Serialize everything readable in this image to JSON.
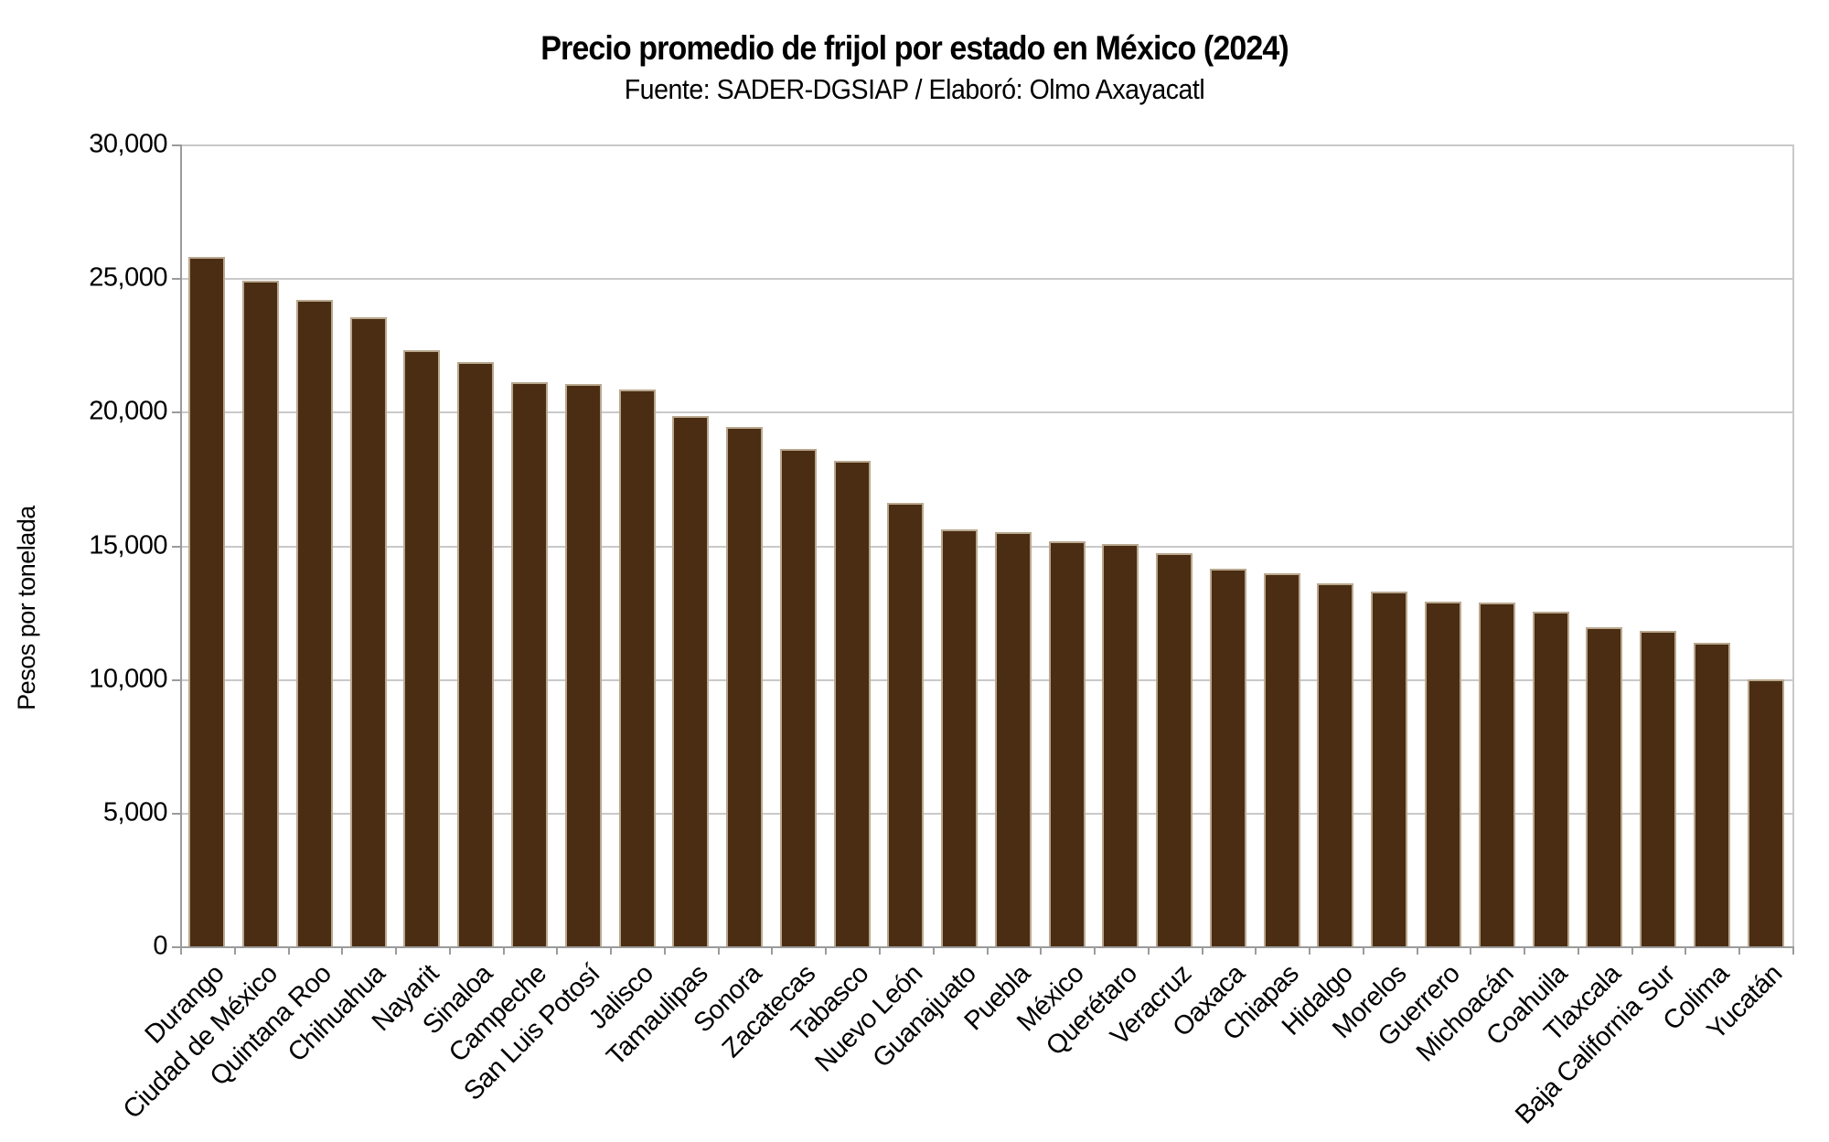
{
  "chart_data": {
    "type": "bar",
    "title": "Precio promedio de frijol por estado en México (2024)",
    "subtitle": "Fuente: SADER-DGSIAP / Elaboró: Olmo Axayacatl",
    "ylabel": "Pesos por tonelada",
    "xlabel": "",
    "ylim": [
      0,
      30000
    ],
    "ytick_step": 5000,
    "ytick_labels": [
      "0",
      "5,000",
      "10,000",
      "15,000",
      "20,000",
      "25,000",
      "30,000"
    ],
    "grid": true,
    "legend": false,
    "bar_color": "#4a2d12",
    "bar_border_color": "#b9a88f",
    "gridline_color": "#c9c9c9",
    "axis_color": "#9b9b9b",
    "categories": [
      "Durango",
      "Ciudad de México",
      "Quintana Roo",
      "Chihuahua",
      "Nayarit",
      "Sinaloa",
      "Campeche",
      "San Luis Potosí",
      "Jalisco",
      "Tamaulipas",
      "Sonora",
      "Zacatecas",
      "Tabasco",
      "Nuevo León",
      "Guanajuato",
      "Puebla",
      "México",
      "Querétaro",
      "Veracruz",
      "Oaxaca",
      "Chiapas",
      "Hidalgo",
      "Morelos",
      "Guerrero",
      "Michoacán",
      "Coahuila",
      "Tlaxcala",
      "Baja California Sur",
      "Colima",
      "Yucatán"
    ],
    "values": [
      25800,
      24900,
      24180,
      23530,
      22300,
      21850,
      21100,
      21040,
      20850,
      19830,
      19440,
      18600,
      18160,
      16590,
      15600,
      15510,
      15160,
      15050,
      14720,
      14140,
      13970,
      13570,
      13290,
      12910,
      12860,
      12510,
      11940,
      11800,
      11370,
      9980
    ]
  }
}
